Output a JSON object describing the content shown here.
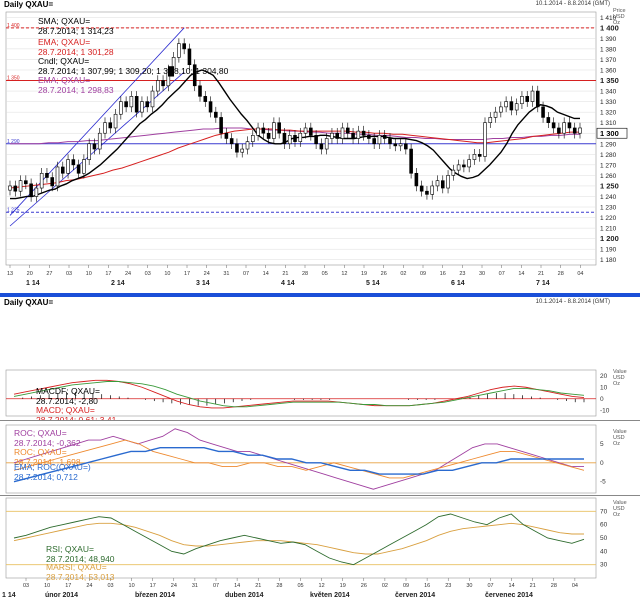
{
  "main": {
    "title": "Daily QXAU=",
    "date_range": "10.1.2014 - 8.8.2014 (GMT)",
    "axis_header": [
      "Price",
      "USD",
      "Oz"
    ],
    "legend": {
      "sma_label": "SMA; QXAU=",
      "sma_value": "28.7.2014; 1 314,23",
      "ema1_label": "EMA; QXAU=",
      "ema1_value": "28.7.2014; 1 301,28",
      "cndl_label": "Cndl; QXAU=",
      "cndl_value": "28.7.2014; 1 307,99; 1 309,20; 1 3█8,10; 1 304,80",
      "ema2_label": "EMA; QXAU=",
      "ema2_value": "28.7.2014; 1 298,83"
    },
    "level_labels": [
      "1 400",
      "1 350",
      "1 290",
      "1 225"
    ],
    "price_tag": "1 300",
    "colors": {
      "up": "#ffffff",
      "down": "#000000",
      "sma": "#000000",
      "ema1": "#d62020",
      "ema2": "#a040a0",
      "channel": "#2a2acf",
      "hline_red": "#d62020",
      "hline_blue": "#3a3ad0"
    }
  },
  "macd": {
    "title": "Daily QXAU=",
    "date_range": "10.1.2014 - 8.8.2014 (GMT)",
    "axis_header": [
      "Value",
      "USD",
      "Oz"
    ],
    "legend": {
      "macdf_label": "MACDF; QXAU=",
      "macdf_value": "28.7.2014; -2,80",
      "macd_label": "MACD; QXAU=",
      "macd_value": "28.7.2014; 0,61; 3,41"
    },
    "ticks": [
      "20",
      "10",
      "0",
      "-10"
    ]
  },
  "roc": {
    "axis_header": [
      "Value",
      "USD",
      "Oz"
    ],
    "legend": {
      "roc1_label": "ROC; QXAU=",
      "roc1_value": "28.7.2014; -0,362",
      "roc2_label": "ROC; QXAU=",
      "roc2_value": "28.7.2014; -1,698",
      "ema_label": "EMA; ROC(QXAU=)",
      "ema_value": "28.7.2014; 0,712"
    },
    "ticks": [
      "5",
      "0",
      "-5"
    ]
  },
  "rsi": {
    "axis_header": [
      "Value",
      "USD",
      "Oz"
    ],
    "legend": {
      "rsi_label": "RSI; QXAU=",
      "rsi_value": "28.7.2014; 48,940",
      "marsi_label": "MARSI; QXAU=",
      "marsi_value": "28.7.2014; 53,013"
    },
    "ticks": [
      "70",
      "60",
      "50",
      "40",
      "30"
    ]
  },
  "xaxis_top": {
    "days": [
      "13",
      "20",
      "27",
      "03",
      "10",
      "17",
      "24",
      "03",
      "10",
      "17",
      "24",
      "31",
      "07",
      "14",
      "21",
      "28",
      "05",
      "12",
      "19",
      "26",
      "02",
      "09",
      "16",
      "23",
      "30",
      "07",
      "14",
      "21",
      "28",
      "04"
    ],
    "months": [
      "1 14",
      "2 14",
      "3 14",
      "4 14",
      "5 14",
      "6 14",
      "7 14"
    ]
  },
  "xaxis_bottom": {
    "days": [
      "03",
      "10",
      "17",
      "24",
      "03",
      "10",
      "17",
      "24",
      "31",
      "07",
      "14",
      "21",
      "28",
      "05",
      "12",
      "19",
      "26",
      "02",
      "09",
      "16",
      "23",
      "30",
      "07",
      "14",
      "21",
      "28",
      "04"
    ],
    "months": [
      "1 14",
      "únor 2014",
      "březen 2014",
      "duben 2014",
      "květen 2014",
      "červen 2014",
      "červenec 2014"
    ]
  },
  "chart_data": [
    {
      "type": "candlestick",
      "title": "Daily QXAU=",
      "ylim": [
        1175,
        1415
      ],
      "yticks": [
        1180,
        1190,
        1200,
        1210,
        1220,
        1230,
        1240,
        1250,
        1260,
        1270,
        1280,
        1290,
        1300,
        1310,
        1320,
        1330,
        1340,
        1350,
        1360,
        1370,
        1380,
        1390,
        1400,
        1410
      ],
      "horizontal_lines": [
        {
          "value": 1400,
          "style": "dashed",
          "color": "red"
        },
        {
          "value": 1350,
          "style": "solid",
          "color": "red"
        },
        {
          "value": 1290,
          "style": "solid",
          "color": "blue"
        },
        {
          "value": 1225,
          "style": "dashed",
          "color": "blue"
        }
      ],
      "close": [
        1250,
        1245,
        1255,
        1252,
        1240,
        1248,
        1262,
        1258,
        1250,
        1268,
        1262,
        1275,
        1270,
        1262,
        1275,
        1290,
        1285,
        1300,
        1310,
        1305,
        1318,
        1330,
        1325,
        1335,
        1320,
        1330,
        1325,
        1340,
        1350,
        1345,
        1360,
        1372,
        1385,
        1380,
        1365,
        1345,
        1335,
        1330,
        1320,
        1315,
        1300,
        1295,
        1290,
        1282,
        1285,
        1292,
        1298,
        1305,
        1300,
        1295,
        1310,
        1300,
        1290,
        1298,
        1292,
        1300,
        1305,
        1298,
        1290,
        1285,
        1295,
        1300,
        1295,
        1305,
        1300,
        1295,
        1302,
        1298,
        1295,
        1290,
        1298,
        1295,
        1290,
        1288,
        1290,
        1285,
        1262,
        1250,
        1245,
        1242,
        1250,
        1255,
        1248,
        1260,
        1265,
        1270,
        1268,
        1275,
        1280,
        1278,
        1310,
        1315,
        1320,
        1325,
        1330,
        1322,
        1328,
        1335,
        1330,
        1340,
        1325,
        1315,
        1310,
        1305,
        1300,
        1310,
        1305,
        1300,
        1305
      ],
      "sma": [
        1238,
        1238,
        1239,
        1240,
        1240,
        1242,
        1244,
        1246,
        1247,
        1250,
        1252,
        1255,
        1257,
        1259,
        1262,
        1266,
        1270,
        1275,
        1280,
        1285,
        1291,
        1297,
        1303,
        1309,
        1313,
        1318,
        1322,
        1327,
        1333,
        1338,
        1343,
        1349,
        1355,
        1358,
        1360,
        1358,
        1355,
        1348,
        1340,
        1332,
        1325,
        1318,
        1312,
        1305,
        1298,
        1294,
        1291,
        1290,
        1290,
        1292,
        1295,
        1296,
        1296,
        1297,
        1297,
        1298,
        1298,
        1297,
        1296,
        1295,
        1295,
        1295,
        1296,
        1297,
        1297,
        1297,
        1297,
        1296,
        1295,
        1295,
        1295,
        1294,
        1293,
        1291,
        1288,
        1284,
        1278,
        1272,
        1266,
        1262,
        1259,
        1257,
        1258,
        1260,
        1265,
        1270,
        1276,
        1282,
        1290,
        1300,
        1308,
        1314,
        1320,
        1324,
        1327,
        1326,
        1324,
        1320,
        1318,
        1316,
        1314,
        1314
      ],
      "ema_red": [
        1248,
        1249,
        1250,
        1251,
        1252,
        1253,
        1255,
        1256,
        1258,
        1260,
        1262,
        1265,
        1267,
        1270,
        1273,
        1276,
        1279,
        1282,
        1286,
        1289,
        1292,
        1295,
        1298,
        1300,
        1302,
        1303,
        1304,
        1304,
        1304,
        1303,
        1303,
        1302,
        1302,
        1302,
        1302,
        1302,
        1302,
        1301,
        1301,
        1300,
        1300,
        1299,
        1299,
        1298,
        1297,
        1296,
        1295,
        1294,
        1293,
        1292,
        1291,
        1291,
        1292,
        1293,
        1294,
        1295,
        1297,
        1298,
        1299,
        1300,
        1301,
        1301
      ],
      "ema_purple": [
        1290,
        1290,
        1290,
        1290,
        1291,
        1291,
        1292,
        1292,
        1293,
        1293,
        1294,
        1295,
        1296,
        1297,
        1298,
        1299,
        1300,
        1301,
        1302,
        1303,
        1304,
        1304,
        1305,
        1305,
        1305,
        1304,
        1304,
        1303,
        1303,
        1302,
        1302,
        1301,
        1301,
        1300,
        1300,
        1300,
        1299,
        1299,
        1298,
        1298,
        1297,
        1296,
        1296,
        1295,
        1295,
        1294,
        1294,
        1294,
        1294,
        1294,
        1295,
        1295,
        1296,
        1296,
        1297,
        1297,
        1298,
        1298,
        1299,
        1299
      ]
    },
    {
      "type": "line",
      "name": "MACD",
      "ylim": [
        -15,
        25
      ],
      "series": [
        {
          "name": "MACDF",
          "style": "histogram",
          "values": [
            0,
            1,
            2,
            3,
            4,
            5,
            6,
            6,
            6,
            5,
            4,
            3,
            2,
            1,
            0,
            -1,
            -2,
            -3,
            -4,
            -5,
            -5,
            -6,
            -6,
            -5,
            -4,
            -3,
            -2,
            -1,
            0,
            0,
            0,
            0,
            -1,
            -1,
            -1,
            -1,
            -1,
            0,
            0,
            0,
            0,
            0,
            0,
            0,
            0,
            -1,
            -1,
            -1,
            -1,
            0,
            0,
            1,
            2,
            3,
            4,
            5,
            5,
            4,
            3,
            2,
            1,
            0,
            -1,
            -2,
            -3,
            -3
          ]
        },
        {
          "name": "MACD",
          "values": [
            4,
            6,
            8,
            10,
            12,
            14,
            15,
            16,
            16,
            15,
            13,
            10,
            6,
            2,
            -2,
            -5,
            -7,
            -8,
            -8,
            -7,
            -6,
            -5,
            -4,
            -3,
            -2,
            -2,
            -2,
            -2,
            -3,
            -4,
            -5,
            -6,
            -6,
            -6,
            -6,
            -5,
            -4,
            -2,
            0,
            2,
            5,
            8,
            10,
            11,
            10,
            8,
            6,
            4,
            2,
            1
          ]
        },
        {
          "name": "Signal",
          "values": [
            2,
            4,
            6,
            8,
            10,
            12,
            13,
            14,
            15,
            15,
            14,
            13,
            11,
            8,
            4,
            1,
            -2,
            -4,
            -6,
            -7,
            -7,
            -6,
            -5,
            -4,
            -3,
            -3,
            -3,
            -3,
            -3,
            -4,
            -5,
            -5,
            -6,
            -6,
            -6,
            -5,
            -4,
            -3,
            -1,
            1,
            3,
            5,
            7,
            9,
            9,
            8,
            7,
            5,
            4,
            3
          ]
        }
      ]
    },
    {
      "type": "line",
      "name": "ROC",
      "ylim": [
        -8,
        10
      ],
      "series": [
        {
          "name": "ROC 1",
          "values": [
            0,
            1,
            2,
            3,
            4,
            5,
            6,
            6,
            7,
            6,
            5,
            6,
            7,
            9,
            8,
            6,
            5,
            4,
            3,
            3,
            2,
            1,
            0,
            -1,
            -2,
            -3,
            -4,
            -5,
            -6,
            -7,
            -6,
            -5,
            -4,
            -3,
            -2,
            0,
            2,
            4,
            5,
            5,
            4,
            3,
            2,
            1,
            0,
            -1,
            -1
          ]
        },
        {
          "name": "ROC 2",
          "values": [
            -2,
            -1,
            0,
            1,
            2,
            3,
            4,
            5,
            6,
            5,
            3,
            2,
            1,
            0,
            0,
            -1,
            -1,
            0,
            0,
            -1,
            -1,
            -2,
            -1,
            0,
            -1,
            -2,
            -3,
            -4,
            -4,
            -3,
            -2,
            -1,
            0,
            1,
            2,
            3,
            3,
            2,
            1,
            0,
            -1,
            -2
          ]
        },
        {
          "name": "EMA ROC",
          "values": [
            -5,
            -4,
            -3,
            -2,
            -1,
            0,
            1,
            2,
            3,
            3,
            4,
            4,
            4,
            4,
            3,
            3,
            2,
            2,
            1,
            1,
            0,
            0,
            -1,
            -2,
            -2,
            -3,
            -3,
            -3,
            -3,
            -2,
            -2,
            -1,
            0,
            0,
            1,
            1,
            1,
            1,
            1,
            1
          ]
        }
      ]
    },
    {
      "type": "line",
      "name": "RSI",
      "ylim": [
        20,
        80
      ],
      "horizontal_lines": [
        {
          "value": 70,
          "color": "orange"
        },
        {
          "value": 30,
          "color": "orange"
        }
      ],
      "series": [
        {
          "name": "RSI",
          "values": [
            50,
            52,
            55,
            58,
            60,
            62,
            64,
            66,
            65,
            60,
            55,
            50,
            45,
            40,
            38,
            42,
            45,
            48,
            50,
            52,
            50,
            48,
            46,
            47,
            45,
            40,
            35,
            32,
            30,
            35,
            40,
            45,
            50,
            55,
            60,
            66,
            68,
            65,
            62,
            60,
            65,
            68,
            60,
            55,
            50,
            48,
            46,
            49
          ]
        },
        {
          "name": "MARSI",
          "values": [
            48,
            50,
            52,
            54,
            56,
            58,
            60,
            61,
            61,
            60,
            58,
            55,
            52,
            48,
            45,
            44,
            44,
            45,
            46,
            47,
            48,
            48,
            48,
            47,
            46,
            45,
            43,
            41,
            39,
            38,
            38,
            40,
            42,
            45,
            48,
            52,
            55,
            57,
            58,
            59,
            60,
            61,
            60,
            58,
            56,
            54,
            53,
            53
          ]
        }
      ]
    }
  ]
}
